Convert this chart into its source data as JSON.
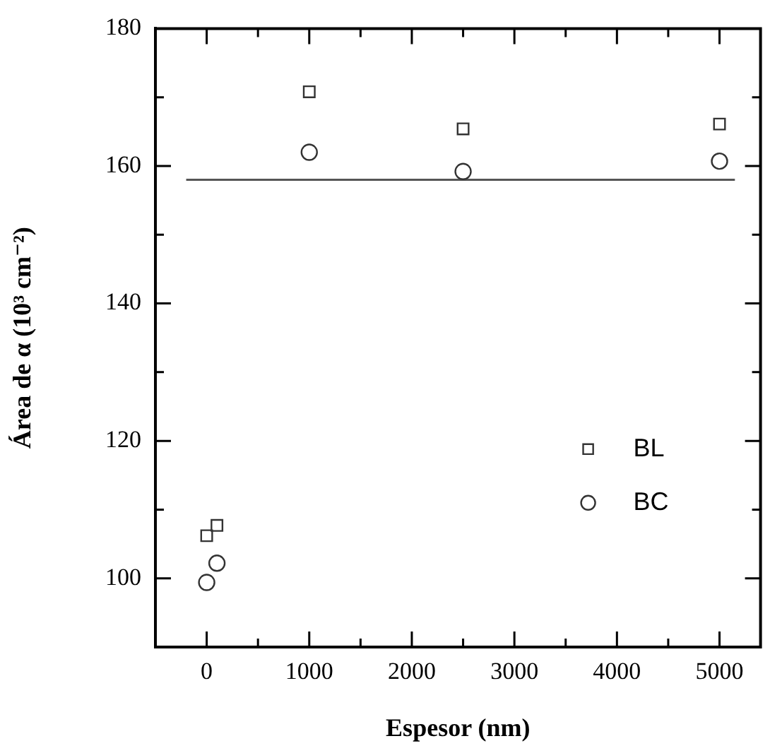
{
  "chart_data": {
    "type": "scatter",
    "xlabel": "Espesor (nm)",
    "ylabel": "Área de α (10³ cm⁻²)",
    "xlim": [
      -500,
      5400
    ],
    "xticks": [
      {
        "value": 0,
        "label": "0"
      },
      {
        "value": 500,
        "label": null
      },
      1000,
      {
        "value": 1500,
        "label": null
      },
      2000,
      {
        "value": 2500,
        "label": null
      },
      3000,
      {
        "value": 3500,
        "label": null
      },
      4000,
      {
        "value": 4500,
        "label": null
      },
      5000
    ],
    "ylim": [
      90,
      180
    ],
    "yticks": [
      100,
      {
        "value": 110,
        "label": null
      },
      120,
      {
        "value": 130,
        "label": null
      },
      140,
      {
        "value": 150,
        "label": null
      },
      160,
      {
        "value": 170,
        "label": null
      },
      180
    ],
    "grid": false,
    "legend": "bottom right",
    "series": [
      {
        "name": "BL",
        "color": "#333333",
        "marker": "square",
        "x": [
          0,
          100,
          1000,
          2500,
          5000
        ],
        "values": [
          106.2,
          107.7,
          170.8,
          165.4,
          166.1
        ]
      },
      {
        "name": "BC",
        "color": "#333333",
        "marker": "circle",
        "x": [
          0,
          100,
          1000,
          2500,
          5000
        ],
        "values": [
          99.4,
          102.2,
          162.0,
          159.2,
          160.7
        ]
      },
      {
        "type": "line",
        "color": "#555555",
        "marker": "none",
        "x": [
          -200,
          5150
        ],
        "values": [
          158,
          158
        ]
      }
    ]
  }
}
